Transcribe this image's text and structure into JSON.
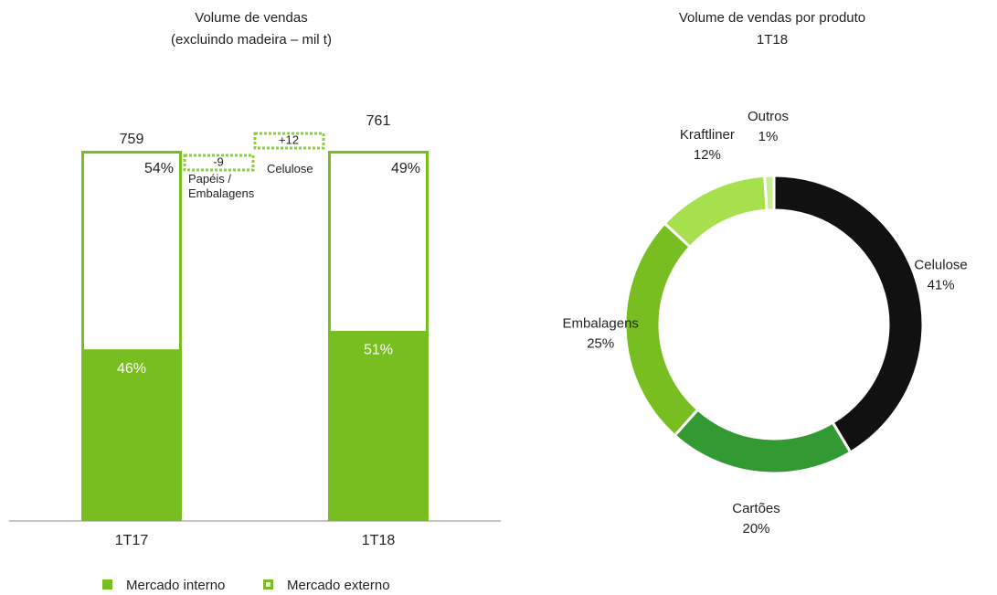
{
  "chart_data": [
    {
      "type": "bar",
      "title": "Volume de vendas",
      "subtitle": "(excluindo madeira – mil t)",
      "categories": [
        "1T17",
        "1T18"
      ],
      "totals": [
        759,
        761
      ],
      "ylim": [
        0,
        100
      ],
      "series": [
        {
          "name": "Mercado interno",
          "color": "#78be20",
          "fill": true,
          "values": [
            46,
            51
          ],
          "value_labels": [
            "46%",
            "51%"
          ]
        },
        {
          "name": "Mercado externo",
          "color": "#78be20",
          "fill": false,
          "values": [
            54,
            49
          ],
          "value_labels": [
            "54%",
            "49%"
          ]
        }
      ],
      "bridge": {
        "labels": [
          "Papéis / Embalagens",
          "Celulose"
        ],
        "values": [
          -9,
          12
        ],
        "value_labels": [
          "-9",
          "+12"
        ]
      },
      "legend": "bottom"
    },
    {
      "type": "pie",
      "title": "Volume de vendas por produto",
      "subtitle": "1T18",
      "donut": true,
      "categories": [
        "Celulose",
        "Cartões",
        "Embalagens",
        "Kraftliner",
        "Outros"
      ],
      "values": [
        41,
        20,
        25,
        12,
        1
      ],
      "value_labels": [
        "41%",
        "20%",
        "25%",
        "12%",
        "1%"
      ],
      "colors": [
        "#111111",
        "#339933",
        "#78be20",
        "#a6e04d",
        "#c9ee92"
      ]
    }
  ]
}
